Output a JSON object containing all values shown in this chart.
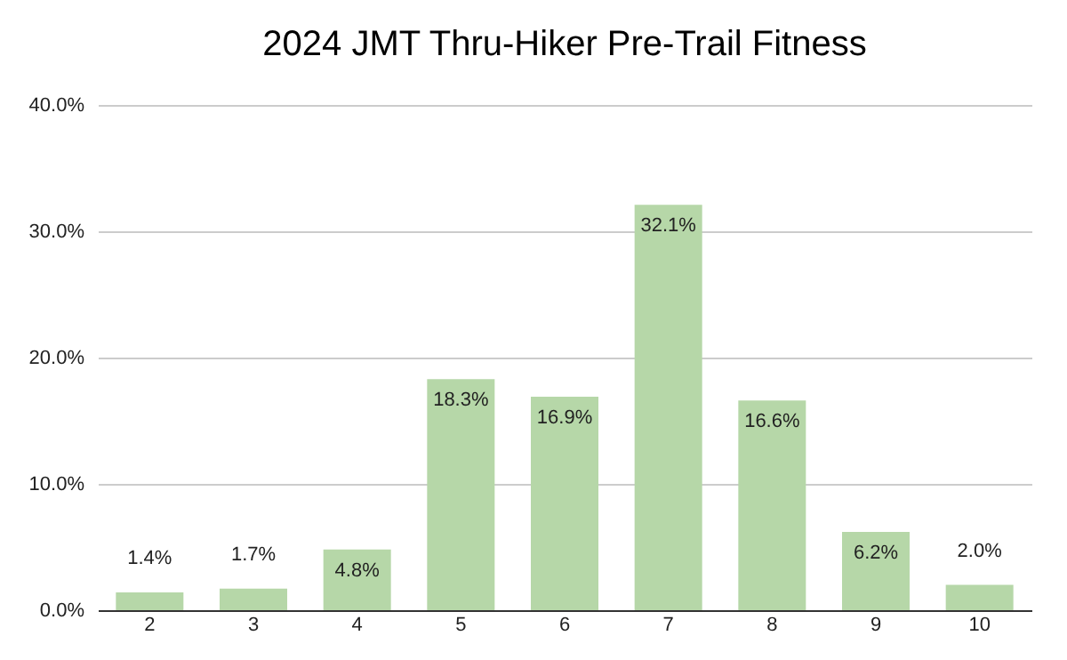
{
  "chart_data": {
    "type": "bar",
    "title": "2024 JMT Thru-Hiker Pre-Trail Fitness",
    "categories": [
      "2",
      "3",
      "4",
      "5",
      "6",
      "7",
      "8",
      "9",
      "10"
    ],
    "values": [
      1.4,
      1.7,
      4.8,
      18.3,
      16.9,
      32.1,
      16.6,
      6.2,
      2.0
    ],
    "value_labels": [
      "1.4%",
      "1.7%",
      "4.8%",
      "18.3%",
      "16.9%",
      "32.1%",
      "16.6%",
      "6.2%",
      "2.0%"
    ],
    "color": "#b6d7a8",
    "ylim": [
      0,
      40
    ],
    "yticks": [
      {
        "value": 0,
        "label": "0.0%"
      },
      {
        "value": 10,
        "label": "10.0%"
      },
      {
        "value": 20,
        "label": "20.0%"
      },
      {
        "value": 30,
        "label": "30.0%"
      },
      {
        "value": 40,
        "label": "40.0%"
      }
    ],
    "grid": "y"
  }
}
